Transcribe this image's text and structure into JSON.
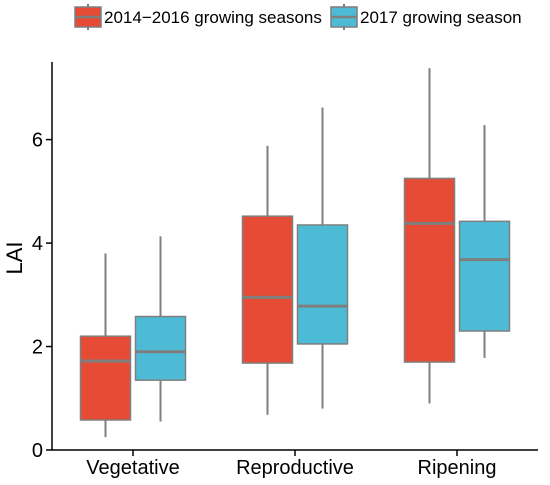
{
  "chart_data": {
    "type": "boxplot",
    "title": "",
    "xlabel": "",
    "ylabel": "LAI",
    "ylim": [
      0,
      7.5
    ],
    "yticks": [
      0,
      2,
      4,
      6
    ],
    "grid": false,
    "legend_position": "top",
    "categories": [
      "Vegetative",
      "Reproductive",
      "Ripening"
    ],
    "series": [
      {
        "name": "2014−2016 growing seasons",
        "color": "#e64b35",
        "boxes": [
          {
            "min": 0.25,
            "q1": 0.58,
            "median": 1.72,
            "q3": 2.2,
            "max": 3.8
          },
          {
            "min": 0.68,
            "q1": 1.68,
            "median": 2.95,
            "q3": 4.52,
            "max": 5.88
          },
          {
            "min": 0.9,
            "q1": 1.7,
            "median": 4.38,
            "q3": 5.25,
            "max": 7.38
          }
        ]
      },
      {
        "name": "2017 growing season",
        "color": "#4dbbd5",
        "boxes": [
          {
            "min": 0.55,
            "q1": 1.35,
            "median": 1.9,
            "q3": 2.58,
            "max": 4.13
          },
          {
            "min": 0.8,
            "q1": 2.05,
            "median": 2.78,
            "q3": 4.35,
            "max": 6.62
          },
          {
            "min": 1.78,
            "q1": 2.3,
            "median": 3.68,
            "q3": 4.42,
            "max": 6.28
          }
        ]
      }
    ],
    "line_color": "#7f7f7f"
  }
}
